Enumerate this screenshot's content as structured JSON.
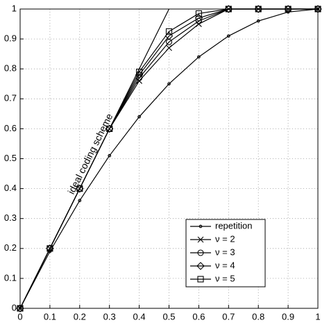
{
  "chart_data": {
    "type": "line",
    "x": [
      0,
      0.1,
      0.2,
      0.3,
      0.4,
      0.5,
      0.6,
      0.7,
      0.8,
      0.9,
      1
    ],
    "series": [
      {
        "name": "repetition",
        "color": "#000000",
        "marker": "dot",
        "values": [
          0,
          0.19,
          0.36,
          0.51,
          0.64,
          0.75,
          0.84,
          0.91,
          0.96,
          0.99,
          1
        ]
      },
      {
        "name": "ν = 2",
        "color": "#000000",
        "marker": "x",
        "values": [
          0,
          0.2,
          0.4,
          0.6,
          0.76,
          0.87,
          0.95,
          1,
          1,
          1,
          1
        ]
      },
      {
        "name": "ν = 3",
        "color": "#000000",
        "marker": "circle",
        "values": [
          0,
          0.2,
          0.4,
          0.6,
          0.77,
          0.89,
          0.96,
          1,
          1,
          1,
          1
        ]
      },
      {
        "name": "ν = 4",
        "color": "#000000",
        "marker": "diamond",
        "values": [
          0,
          0.2,
          0.4,
          0.6,
          0.78,
          0.91,
          0.97,
          1,
          1,
          1,
          1
        ]
      },
      {
        "name": "ν = 5",
        "color": "#000000",
        "marker": "square",
        "values": [
          0,
          0.2,
          0.4,
          0.6,
          0.79,
          0.925,
          0.985,
          1,
          1,
          1,
          1
        ]
      }
    ],
    "reference_line": {
      "label": "ideal coding scheme",
      "x": [
        0,
        0.5
      ],
      "values": [
        0,
        1
      ]
    },
    "xlim": [
      0,
      1
    ],
    "ylim": [
      0,
      1
    ],
    "xticks": [
      0,
      0.1,
      0.2,
      0.3,
      0.4,
      0.5,
      0.6,
      0.7,
      0.8,
      0.9,
      1
    ],
    "yticks": [
      0,
      0.1,
      0.2,
      0.3,
      0.4,
      0.5,
      0.6,
      0.7,
      0.8,
      0.9,
      1
    ],
    "grid": true,
    "legend": "lower right"
  }
}
